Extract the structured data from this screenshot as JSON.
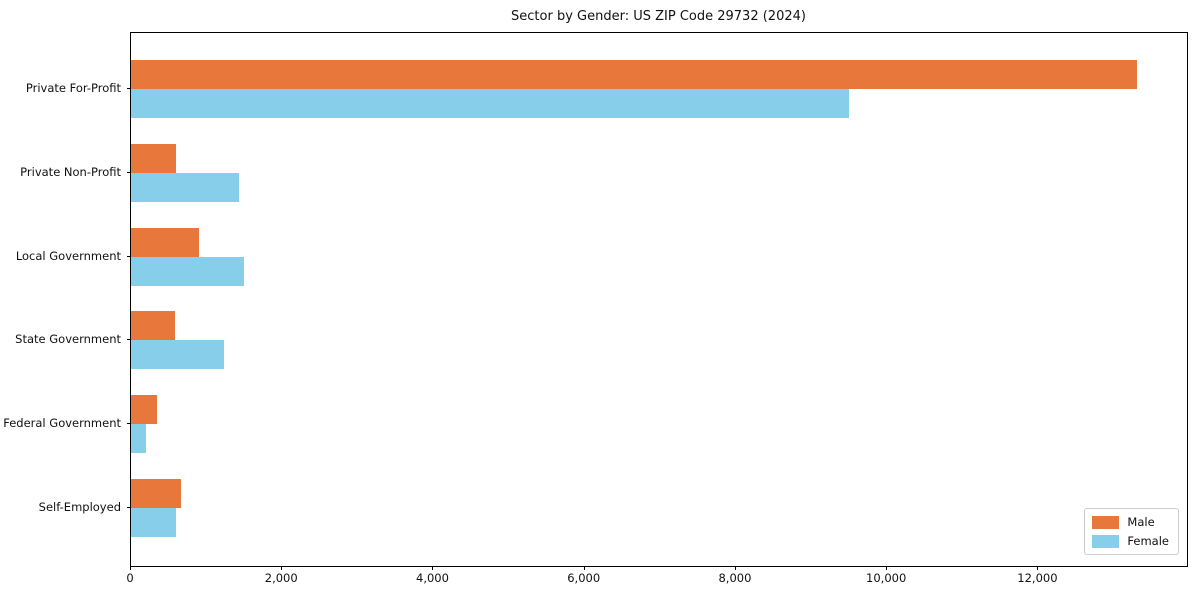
{
  "chart_data": {
    "type": "bar",
    "orientation": "horizontal",
    "title": "Sector by Gender: US ZIP Code 29732 (2024)",
    "xlabel": "",
    "ylabel": "",
    "categories": [
      "Private For-Profit",
      "Private Non-Profit",
      "Local Government",
      "State Government",
      "Federal Government",
      "Self-Employed"
    ],
    "series": [
      {
        "name": "Male",
        "color": "#e8773c",
        "values": [
          13300,
          600,
          900,
          580,
          350,
          660
        ]
      },
      {
        "name": "Female",
        "color": "#87ceeb",
        "values": [
          9500,
          1430,
          1490,
          1230,
          200,
          590
        ]
      }
    ],
    "xlim": [
      0,
      13965
    ],
    "xticks": [
      {
        "value": 0,
        "label": "0"
      },
      {
        "value": 2000,
        "label": "2,000"
      },
      {
        "value": 4000,
        "label": "4,000"
      },
      {
        "value": 6000,
        "label": "6,000"
      },
      {
        "value": 8000,
        "label": "8,000"
      },
      {
        "value": 10000,
        "label": "10,000"
      },
      {
        "value": 12000,
        "label": "12,000"
      }
    ],
    "grid": false,
    "legend_position": "lower right",
    "spine_color": "#000000",
    "background_color": "#ffffff"
  }
}
